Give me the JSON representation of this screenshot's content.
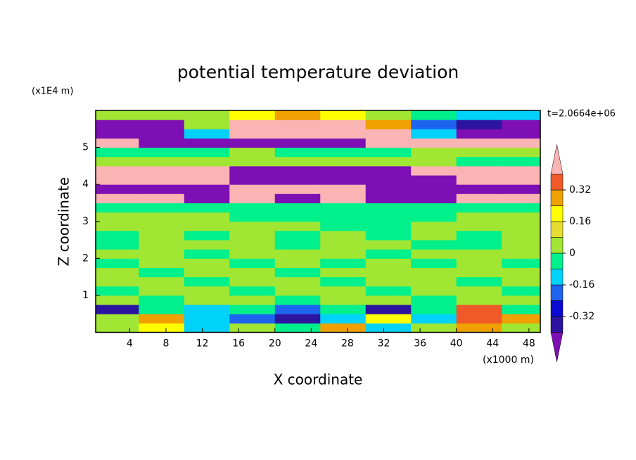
{
  "chart_data": {
    "type": "contour",
    "title": "potential temperature deviation",
    "xlabel": "X coordinate",
    "ylabel": "Z coordinate",
    "x_unit": "(x1000 m)",
    "y_unit": "(x1E4 m)",
    "time_label": "t=2.0664e+06",
    "xlim": [
      0.25,
      49.25
    ],
    "ylim": [
      0,
      6
    ],
    "xticks": [
      4,
      8,
      12,
      16,
      20,
      24,
      28,
      32,
      36,
      40,
      44,
      48
    ],
    "yticks": [
      1,
      2,
      3,
      4,
      5
    ],
    "x": [
      2.5,
      7.5,
      12.5,
      17.5,
      22.5,
      27.5,
      32.5,
      37.5,
      42.5,
      47.5
    ],
    "y": [
      0.125,
      0.375,
      0.625,
      0.875,
      1.125,
      1.375,
      1.625,
      1.875,
      2.125,
      2.375,
      2.625,
      2.875,
      3.125,
      3.375,
      3.625,
      3.875,
      4.125,
      4.375,
      4.625,
      4.875,
      5.125,
      5.375,
      5.625,
      5.875
    ],
    "values": [
      [
        0.04,
        0.2,
        -0.12,
        0.04,
        -0.04,
        0.28,
        -0.12,
        0.04,
        0.28,
        0.04
      ],
      [
        0.04,
        0.28,
        -0.12,
        -0.2,
        -0.36,
        -0.12,
        0.2,
        -0.12,
        0.36,
        0.28
      ],
      [
        -0.36,
        -0.04,
        -0.12,
        -0.04,
        -0.2,
        -0.04,
        -0.36,
        -0.04,
        0.36,
        -0.04
      ],
      [
        0.04,
        -0.04,
        0.04,
        0.04,
        -0.04,
        0.04,
        0.04,
        -0.04,
        0.04,
        0.04
      ],
      [
        -0.04,
        0.04,
        0.04,
        -0.04,
        0.04,
        0.04,
        -0.04,
        0.04,
        0.04,
        -0.04
      ],
      [
        0.04,
        0.04,
        -0.04,
        0.04,
        0.04,
        -0.04,
        0.04,
        0.04,
        -0.04,
        0.04
      ],
      [
        0.04,
        -0.04,
        0.04,
        0.04,
        -0.04,
        0.04,
        0.04,
        0.04,
        0.04,
        0.04
      ],
      [
        -0.04,
        0.04,
        0.04,
        -0.04,
        0.04,
        -0.04,
        0.04,
        -0.04,
        0.04,
        -0.04
      ],
      [
        0.04,
        0.04,
        -0.04,
        0.04,
        0.04,
        0.04,
        -0.04,
        0.04,
        0.04,
        0.04
      ],
      [
        -0.04,
        0.04,
        0.04,
        0.04,
        -0.04,
        0.04,
        0.04,
        -0.04,
        -0.04,
        0.04
      ],
      [
        -0.04,
        0.04,
        -0.04,
        0.04,
        -0.04,
        0.04,
        -0.04,
        0.04,
        -0.04,
        0.04
      ],
      [
        0.04,
        0.04,
        0.04,
        0.04,
        0.04,
        -0.04,
        -0.04,
        0.04,
        0.04,
        0.04
      ],
      [
        0.04,
        0.04,
        0.04,
        -0.04,
        -0.04,
        -0.04,
        -0.04,
        -0.04,
        0.04,
        0.04
      ],
      [
        -0.04,
        -0.04,
        -0.04,
        -0.04,
        -0.04,
        -0.04,
        -0.04,
        -0.04,
        -0.04,
        -0.04
      ],
      [
        0.45,
        0.45,
        -0.45,
        0.45,
        -0.45,
        0.45,
        -0.45,
        -0.45,
        0.45,
        0.45
      ],
      [
        -0.45,
        -0.45,
        -0.45,
        0.45,
        0.45,
        0.45,
        -0.45,
        -0.45,
        -0.45,
        -0.45
      ],
      [
        0.45,
        0.45,
        0.45,
        -0.45,
        -0.45,
        -0.45,
        -0.45,
        -0.45,
        0.45,
        0.45
      ],
      [
        0.45,
        0.45,
        0.45,
        -0.45,
        -0.45,
        -0.45,
        -0.45,
        0.45,
        0.45,
        0.45
      ],
      [
        0.04,
        0.04,
        0.04,
        0.04,
        0.04,
        0.04,
        0.04,
        0.04,
        -0.04,
        -0.04
      ],
      [
        -0.04,
        -0.04,
        -0.04,
        0.04,
        -0.04,
        -0.04,
        -0.04,
        0.04,
        0.04,
        0.04
      ],
      [
        0.45,
        -0.45,
        -0.45,
        -0.45,
        -0.45,
        -0.45,
        0.45,
        0.45,
        0.45,
        0.45
      ],
      [
        -0.45,
        -0.45,
        -0.12,
        0.45,
        0.45,
        0.45,
        0.45,
        -0.12,
        -0.45,
        -0.45
      ],
      [
        -0.45,
        -0.45,
        0.04,
        0.45,
        0.45,
        0.45,
        0.28,
        -0.2,
        -0.36,
        -0.45
      ],
      [
        0.04,
        0.04,
        0.04,
        0.2,
        0.28,
        0.2,
        0.04,
        -0.04,
        -0.12,
        -0.12
      ]
    ],
    "levels": [
      -0.4,
      -0.32,
      -0.24,
      -0.16,
      -0.08,
      0,
      0.08,
      0.16,
      0.24,
      0.32,
      0.4
    ],
    "colors": [
      "#7d0fb4",
      "#2d14a0",
      "#0a0ad2",
      "#1e64f0",
      "#00d2fa",
      "#00f08c",
      "#a0e632",
      "#e6dc32",
      "#ffff00",
      "#f0a000",
      "#f05a28",
      "#fab4b4"
    ],
    "colorbar_ticks": [
      0.32,
      0.16,
      0,
      -0.16,
      -0.32
    ]
  }
}
